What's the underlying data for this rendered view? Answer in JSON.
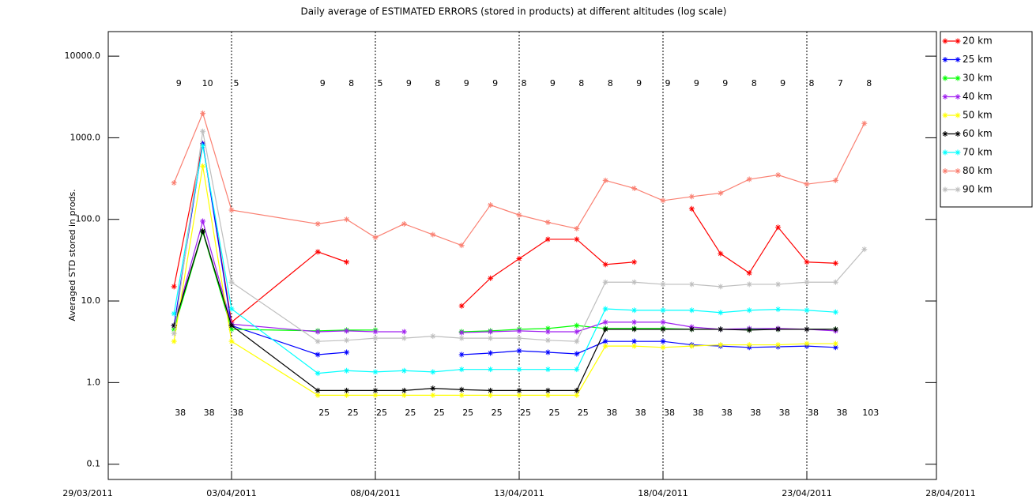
{
  "chart_data": {
    "type": "line",
    "title": "Daily average of ESTIMATED ERRORS (stored in products) at different altitudes (log scale)",
    "y_label": "Averaged STD stored in prods.",
    "log_y": true,
    "x_grid": true,
    "legend": "outside right",
    "x": [
      "01/04/2011",
      "02/04/2011",
      "03/04/2011",
      "06/04/2011",
      "07/04/2011",
      "08/04/2011",
      "09/04/2011",
      "10/04/2011",
      "11/04/2011",
      "12/04/2011",
      "13/04/2011",
      "14/04/2011",
      "15/04/2011",
      "16/04/2011",
      "17/04/2011",
      "18/04/2011",
      "19/04/2011",
      "20/04/2011",
      "21/04/2011",
      "22/04/2011",
      "23/04/2011",
      "24/04/2011",
      "25/04/2011"
    ],
    "xlim": [
      "29/03/2011",
      "28/04/2011"
    ],
    "xticks": [
      "29/03/2011",
      "03/04/2011",
      "08/04/2011",
      "13/04/2011",
      "18/04/2011",
      "23/04/2011",
      "28/04/2011"
    ],
    "ylim": [
      0.065,
      20000
    ],
    "yticks": [
      {
        "value": 0.1,
        "label": "0.1"
      },
      {
        "value": 1,
        "label": "1.0"
      },
      {
        "value": 10,
        "label": "10.0"
      },
      {
        "value": 100,
        "label": "100.0"
      },
      {
        "value": 1000,
        "label": "1000.0"
      },
      {
        "value": 10000,
        "label": "10000.0"
      }
    ],
    "top_labels": [
      9,
      10,
      5,
      9,
      8,
      5,
      9,
      8,
      9,
      9,
      8,
      9,
      8,
      8,
      9,
      9,
      9,
      9,
      8,
      9,
      8,
      7,
      8
    ],
    "bottom_labels": [
      38,
      38,
      38,
      25,
      25,
      25,
      25,
      25,
      25,
      25,
      25,
      25,
      25,
      38,
      38,
      38,
      38,
      38,
      38,
      38,
      38,
      38,
      103
    ],
    "series": [
      {
        "name": "20 km",
        "color": "#ff0000",
        "values": [
          15,
          850,
          5.5,
          40,
          30,
          null,
          null,
          null,
          8.7,
          19,
          33,
          57,
          57,
          28,
          30,
          null,
          135,
          38,
          22,
          80,
          30,
          29,
          null
        ]
      },
      {
        "name": "25 km",
        "color": "#0000ff",
        "values": [
          5,
          850,
          5,
          2.2,
          2.35,
          null,
          null,
          null,
          2.2,
          2.3,
          2.45,
          2.35,
          2.25,
          3.2,
          3.2,
          3.2,
          2.9,
          2.8,
          2.7,
          2.75,
          2.8,
          2.7,
          null
        ]
      },
      {
        "name": "30 km",
        "color": "#00ff00",
        "values": [
          4.5,
          70,
          4.5,
          4.3,
          4.4,
          4.4,
          null,
          null,
          4.2,
          4.3,
          4.5,
          4.6,
          5,
          4.6,
          4.6,
          4.6,
          4.5,
          4.5,
          4.5,
          4.5,
          4.5,
          4.5,
          null
        ]
      },
      {
        "name": "40 km",
        "color": "#a020f0",
        "values": [
          5,
          95,
          5.2,
          4.2,
          4.3,
          4.2,
          4.2,
          null,
          4.1,
          4.2,
          4.3,
          4.2,
          4.2,
          5.5,
          5.5,
          5.5,
          4.8,
          4.5,
          4.6,
          4.6,
          4.5,
          4.3,
          null
        ]
      },
      {
        "name": "50 km",
        "color": "#ffff00",
        "values": [
          3.2,
          450,
          3.2,
          0.7,
          0.7,
          0.7,
          0.7,
          0.7,
          0.7,
          0.7,
          0.7,
          0.7,
          0.7,
          2.8,
          2.8,
          2.7,
          2.8,
          2.9,
          2.9,
          2.9,
          3,
          3,
          null
        ]
      },
      {
        "name": "60 km",
        "color": "#000000",
        "values": [
          5,
          72,
          5,
          0.8,
          0.8,
          0.8,
          0.8,
          0.85,
          0.82,
          0.8,
          0.8,
          0.8,
          0.8,
          4.5,
          4.5,
          4.5,
          4.5,
          4.5,
          4.4,
          4.5,
          4.5,
          4.5,
          null
        ]
      },
      {
        "name": "70 km",
        "color": "#00ffff",
        "values": [
          7,
          800,
          8,
          1.3,
          1.4,
          1.35,
          1.4,
          1.35,
          1.45,
          1.45,
          1.45,
          1.45,
          1.45,
          8,
          7.7,
          7.7,
          7.7,
          7.2,
          7.7,
          7.9,
          7.7,
          7.3,
          null
        ]
      },
      {
        "name": "80 km",
        "color": "#fa8072",
        "values": [
          280,
          2000,
          130,
          88,
          100,
          60,
          88,
          65,
          48,
          150,
          113,
          92,
          77,
          300,
          240,
          170,
          190,
          210,
          310,
          350,
          270,
          300,
          1500
        ]
      },
      {
        "name": "90 km",
        "color": "#bebebe",
        "values": [
          4,
          1200,
          17,
          3.2,
          3.3,
          3.5,
          3.5,
          3.7,
          3.5,
          3.5,
          3.5,
          3.3,
          3.2,
          17,
          17,
          16,
          16,
          15,
          16,
          16,
          17,
          17,
          43
        ]
      }
    ]
  }
}
